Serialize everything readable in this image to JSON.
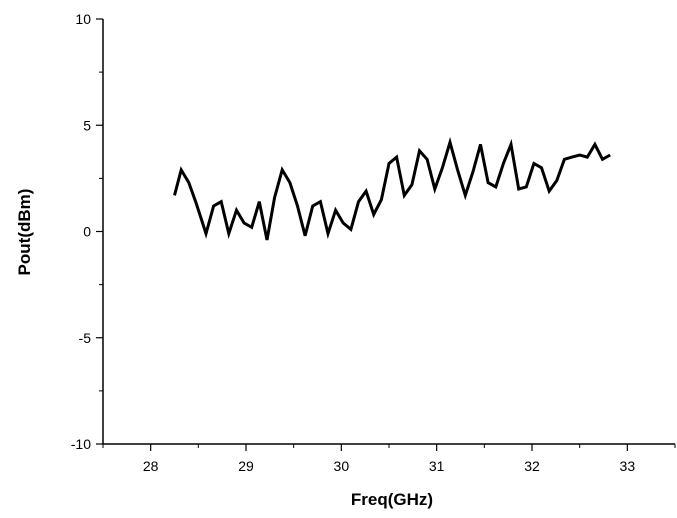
{
  "chart_data": {
    "type": "line",
    "xlabel": "Freq(GHz)",
    "ylabel": "Pout(dBm)",
    "xlim": [
      27.5,
      33.5
    ],
    "ylim": [
      -10,
      10
    ],
    "x_ticks": [
      28,
      29,
      30,
      31,
      32,
      33
    ],
    "y_ticks": [
      -10,
      -5,
      0,
      5,
      10
    ],
    "y_tick_labels": [
      "-10",
      "-5",
      "0",
      "5",
      "10"
    ],
    "grid": false,
    "line_color": "#000000",
    "series": [
      {
        "x": [
          28.25,
          28.32,
          28.4,
          28.48,
          28.58,
          28.66,
          28.74,
          28.82,
          28.9,
          28.98,
          29.06,
          29.14,
          29.22,
          29.3,
          29.38,
          29.46,
          29.54,
          29.62,
          29.7,
          29.78,
          29.86,
          29.94,
          30.02,
          30.1,
          30.18,
          30.26,
          30.34,
          30.42,
          30.5,
          30.58,
          30.66,
          30.74,
          30.82,
          30.9,
          30.98,
          31.06,
          31.14,
          31.22,
          31.3,
          31.38,
          31.46,
          31.54,
          31.62,
          31.7,
          31.78,
          31.86,
          31.94,
          32.02,
          32.1,
          32.18,
          32.26,
          32.34,
          32.42,
          32.5,
          32.58,
          32.66,
          32.74,
          32.82
        ],
        "values": [
          1.7,
          2.9,
          2.3,
          1.3,
          -0.1,
          1.2,
          1.4,
          -0.1,
          1.0,
          0.4,
          0.2,
          1.4,
          -0.4,
          1.6,
          2.9,
          2.3,
          1.2,
          -0.2,
          1.2,
          1.4,
          -0.1,
          1.0,
          0.4,
          0.1,
          1.4,
          1.9,
          0.8,
          1.5,
          3.2,
          3.5,
          1.7,
          2.2,
          3.8,
          3.4,
          2.0,
          3.0,
          4.2,
          2.9,
          1.7,
          2.8,
          4.1,
          2.3,
          2.1,
          3.2,
          4.1,
          2.0,
          2.1,
          3.2,
          3.0,
          1.9,
          2.4,
          3.4,
          3.5,
          3.6,
          3.5,
          4.1,
          3.4,
          3.6
        ]
      }
    ]
  }
}
